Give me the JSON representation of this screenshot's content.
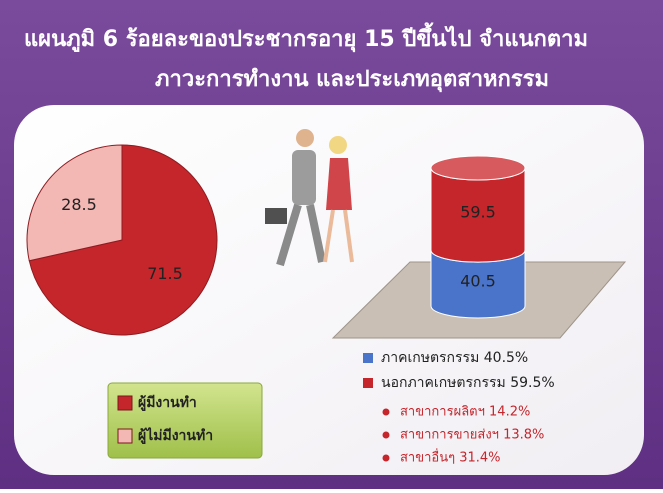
{
  "header": {
    "title_lines": [
      "แผนภูมิ 6  ร้อยละของประชากรอายุ 15 ปีขึ้นไป จำแนกตาม",
      "ภาวะการทำงาน และประเภทอุตสาหกรรม"
    ]
  },
  "chart_data": [
    {
      "type": "pie",
      "categories": [
        "ผู้มีงานทำ",
        "ผู้ไม่มีงานทำ"
      ],
      "values": [
        71.5,
        28.5
      ],
      "colors": [
        "#c4262c",
        "#f3b7b4"
      ]
    },
    {
      "type": "cylinder",
      "stacked": true,
      "categories": [
        null
      ],
      "ylim": [
        0,
        100
      ],
      "series": [
        {
          "name": "ภาคเกษตรกรรม 40.5%",
          "color": "#4a74c9",
          "values": [
            40.5
          ]
        },
        {
          "name": "นอกภาคเกษตรกรรม 59.5%",
          "color": "#c4262c",
          "values": [
            59.5
          ]
        }
      ],
      "annotations": [
        "สาขาการผลิตฯ 14.2%",
        "สาขาการขายส่งฯ 13.8%",
        "สาขาอื่นๆ 31.4%"
      ]
    }
  ]
}
